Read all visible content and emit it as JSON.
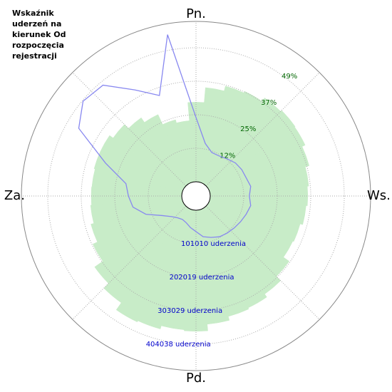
{
  "chart_data": {
    "type": "polar",
    "title": [
      "Wskaźnik",
      "uderzeń na",
      "kierunek Od",
      "rozpoczęcia",
      "rejestracji"
    ],
    "directions": [
      "Pn.",
      "Ws.",
      "Pd.",
      "Za."
    ],
    "x": [
      0,
      10,
      20,
      30,
      40,
      50,
      60,
      70,
      80,
      90,
      100,
      110,
      120,
      130,
      140,
      150,
      160,
      170,
      180,
      190,
      200,
      210,
      220,
      230,
      240,
      250,
      260,
      270,
      280,
      290,
      300,
      310,
      320,
      330,
      340,
      350
    ],
    "series": [
      {
        "color": "#c8ecc8",
        "axis": "r",
        "values": [
          240000,
          285000,
          300000,
          305000,
          318000,
          322000,
          320000,
          310000,
          298000,
          294000,
          290000,
          282000,
          279000,
          300000,
          318000,
          329000,
          333000,
          345000,
          365000,
          362000,
          372000,
          376000,
          350000,
          330000,
          300000,
          285000,
          276000,
          273000,
          272000,
          275000,
          275000,
          262000,
          245000,
          228000,
          195000,
          185000
        ]
      },
      {
        "color": "#8888f0",
        "axis": "r2",
        "values": [
          23.5,
          14.3,
          11.7,
          11.7,
          12.5,
          13.6,
          14.1,
          14.3,
          15.1,
          14.3,
          15.1,
          14.3,
          13.6,
          13.0,
          12.5,
          12.0,
          10.9,
          9.9,
          7.8,
          6.5,
          5.2,
          4.7,
          5.2,
          6.5,
          9.1,
          14.3,
          18.2,
          19.5,
          20.8,
          30.0,
          44.3,
          48.7,
          47.7,
          39.6,
          33.9,
          54.7
        ]
      }
    ],
    "rlim": [
      0,
      483500
    ],
    "rticks": [
      {
        "value": 101010,
        "label": "101010 uderzenia"
      },
      {
        "value": 202019,
        "label": "202019 uderzenia"
      },
      {
        "value": 303029,
        "label": "303029 uderzenia"
      },
      {
        "value": 404038,
        "label": "404038 uderzenia"
      }
    ],
    "r2lim": [
      0,
      58.64
    ],
    "r2ticks": [
      {
        "value": 12.25,
        "label": "12%"
      },
      {
        "value": 24.5,
        "label": "25%"
      },
      {
        "value": 36.75,
        "label": "37%"
      },
      {
        "value": 49,
        "label": "49%"
      }
    ],
    "grid": true
  }
}
